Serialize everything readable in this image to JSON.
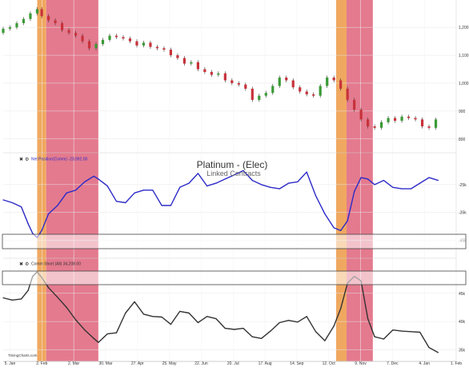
{
  "chart_data": {
    "type": "line",
    "title": "Platinum - (Elec)",
    "subtitle": "Linked Contracts",
    "watermark": "TimingCharts.com",
    "x_tick_labels": [
      "5. Jan",
      "2. Feb",
      "2. Mar",
      "30. Mar",
      "27. Apr",
      "25. May",
      "22. Jun",
      "20. Jul",
      "17. Aug",
      "14. Sep",
      "12. Oct",
      "9. Nov",
      "7. Dec",
      "4. Jan",
      "1. Feb"
    ],
    "x_range": [
      0,
      100
    ],
    "highlight_bands": [
      {
        "x0": 7.5,
        "x1": 9.5,
        "color": "#f0a860"
      },
      {
        "x0": 9.5,
        "x1": 21.0,
        "color": "#e47a8e"
      },
      {
        "x0": 73.5,
        "x1": 75.8,
        "color": "#f0a860"
      },
      {
        "x0": 75.8,
        "x1": 81.6,
        "color": "#e47a8e"
      }
    ],
    "panels": [
      {
        "name": "price",
        "chart_type": "candlestick",
        "y_ticks": [
          800,
          900,
          1000,
          1100,
          1200
        ],
        "y_tick_labels": [
          "800",
          "900",
          "1,000",
          "1,100",
          "1,200"
        ],
        "ylim": [
          765,
          1275
        ],
        "series": [
          {
            "x": [
              0,
              1.5,
              3,
              4.5,
              6,
              7.5,
              8.5,
              10,
              11.5,
              13,
              14.5,
              16,
              17.5,
              19,
              20.5,
              22,
              23.5,
              25,
              26.5,
              28,
              29.5,
              31,
              32.5,
              34,
              35.5,
              37,
              38.5,
              40,
              41.5,
              43,
              44.5,
              46,
              47.5,
              49,
              50.5,
              52,
              53.5,
              55,
              56.5,
              58,
              59.5,
              61,
              62.5,
              64,
              65.5,
              67,
              68.5,
              70,
              71.5,
              73,
              74.5,
              76,
              77.5,
              79,
              80.5,
              82,
              83.5,
              85,
              86.5,
              88,
              89.5,
              91,
              92.5,
              94,
              95.5,
              97
            ],
            "y": [
              1180,
              1195,
              1200,
              1215,
              1230,
              1250,
              1265,
              1240,
              1225,
              1215,
              1190,
              1180,
              1170,
              1150,
              1125,
              1140,
              1155,
              1170,
              1165,
              1160,
              1150,
              1135,
              1145,
              1130,
              1125,
              1120,
              1100,
              1090,
              1070,
              1075,
              1050,
              1040,
              1030,
              1035,
              1010,
              1000,
              995,
              980,
              940,
              955,
              965,
              990,
              1020,
              1010,
              985,
              970,
              960,
              955,
              990,
              1020,
              1010,
              980,
              940,
              905,
              870,
              845,
              840,
              860,
              875,
              865,
              880,
              875,
              870,
              845,
              840,
              870
            ]
          }
        ]
      },
      {
        "name": "net-position",
        "legend_label": "Net Position(Comm) -23,992.00",
        "legend_color": "#2d2bc7",
        "y_ticks": [
          -45000,
          -35000,
          -25000
        ],
        "y_tick_labels": [
          "-45k",
          "-35k",
          "-25k"
        ],
        "ylim": [
          -50000,
          -15000
        ],
        "series": [
          {
            "name": "Net Position(Comm)",
            "color": "#2d2bc7",
            "x": [
              0,
              2,
              4,
              5.5,
              6.5,
              7.5,
              8.5,
              10,
              12,
              14,
              16,
              18,
              20,
              21,
              23,
              25,
              27,
              29,
              31,
              33,
              35,
              37,
              39,
              41,
              43,
              45,
              47,
              49,
              51,
              53,
              55,
              57,
              59,
              61,
              63,
              65,
              67,
              69,
              71,
              73,
              74.5,
              76,
              77.5,
              79,
              80.5,
              82,
              84,
              86,
              88,
              90,
              92,
              94,
              96
            ],
            "y": [
              -30500,
              -31500,
              -33000,
              -39000,
              -42500,
              -44000,
              -41500,
              -35500,
              -32500,
              -28000,
              -27000,
              -24000,
              -22000,
              -23000,
              -25500,
              -31000,
              -31500,
              -28000,
              -27000,
              -27000,
              -32500,
              -32500,
              -26000,
              -24500,
              -21000,
              -25500,
              -24500,
              -23000,
              -21500,
              -20000,
              -23500,
              -25000,
              -26000,
              -26500,
              -24500,
              -24000,
              -20500,
              -29000,
              -35500,
              -40500,
              -41500,
              -38000,
              -27500,
              -22500,
              -23000,
              -25000,
              -23500,
              -26000,
              -26500,
              -26500,
              -24500,
              -22500,
              -23500
            ]
          }
        ]
      },
      {
        "name": "comm-short",
        "legend_label": "Comm Short (All) 34,208.00",
        "legend_color": "#333333",
        "y_ticks": [
          35000,
          40000,
          45000
        ],
        "y_tick_labels": [
          "35k",
          "40k",
          "45k"
        ],
        "ylim": [
          33500,
          50500
        ],
        "series": [
          {
            "name": "Comm Short (All)",
            "color": "#333333",
            "x": [
              0,
              2,
              4,
              5.5,
              6.5,
              7.5,
              8.5,
              10,
              12,
              14,
              16,
              18,
              20,
              21,
              23,
              25,
              27,
              29,
              31,
              33,
              35,
              37,
              39,
              41,
              43,
              45,
              47,
              49,
              51,
              53,
              55,
              57,
              59,
              61,
              63,
              65,
              67,
              69,
              71,
              73,
              74.5,
              76,
              77.5,
              79,
              80.5,
              82,
              84,
              86,
              88,
              90,
              92,
              94,
              96
            ],
            "y": [
              44200,
              43800,
              44000,
              45500,
              48000,
              48800,
              47800,
              46000,
              44300,
              42500,
              40300,
              38500,
              37000,
              36300,
              37800,
              38000,
              41500,
              43500,
              41300,
              40900,
              40800,
              39500,
              41800,
              41500,
              39800,
              40900,
              40500,
              38800,
              38600,
              38800,
              37300,
              37000,
              38300,
              39800,
              40200,
              39900,
              40900,
              38200,
              36600,
              39200,
              42300,
              46800,
              48000,
              47200,
              40500,
              37300,
              36900,
              38500,
              38300,
              38200,
              38100,
              35400,
              34500
            ]
          }
        ]
      }
    ]
  }
}
